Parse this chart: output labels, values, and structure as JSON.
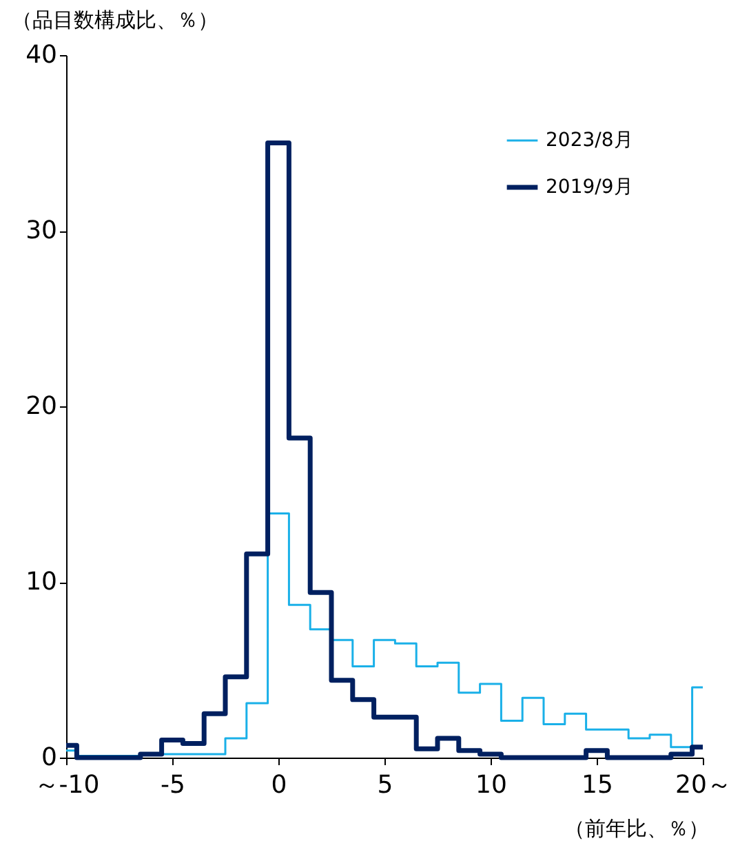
{
  "chart_data": {
    "type": "step",
    "ylabel": "（品目数構成比、％）",
    "xlabel": "（前年比、％）",
    "x": [
      -10,
      -9,
      -8,
      -7,
      -6,
      -5,
      -4,
      -3,
      -2,
      -1,
      0,
      1,
      2,
      3,
      4,
      5,
      6,
      7,
      8,
      9,
      10,
      11,
      12,
      13,
      14,
      15,
      16,
      17,
      18,
      19,
      20
    ],
    "series": [
      {
        "name": "2023/8月",
        "color": "#1ab0e8",
        "values": [
          0.4,
          0.1,
          0.1,
          0.1,
          0.2,
          0.2,
          0.2,
          0.2,
          1.1,
          3.1,
          13.9,
          8.7,
          7.3,
          6.7,
          5.2,
          6.7,
          6.5,
          5.2,
          5.4,
          3.7,
          4.2,
          2.1,
          3.4,
          1.9,
          2.5,
          1.6,
          1.6,
          1.1,
          1.3,
          0.6,
          4.0
        ]
      },
      {
        "name": "2019/9月",
        "color": "#002060",
        "values": [
          0.7,
          0,
          0,
          0,
          0.2,
          1.0,
          0.8,
          2.5,
          4.6,
          11.6,
          35.0,
          18.2,
          9.4,
          4.4,
          3.3,
          2.3,
          2.3,
          0.5,
          1.1,
          0.4,
          0.2,
          0,
          0,
          0,
          0,
          0.4,
          0,
          0,
          0,
          0.2,
          0.6
        ]
      }
    ],
    "xlim": [
      -10,
      20
    ],
    "xticks": [
      {
        "value": -10,
        "label": "～-10"
      },
      -5,
      0,
      5,
      10,
      15,
      {
        "value": 20,
        "label": "20～"
      }
    ],
    "ylim": [
      0,
      40
    ],
    "yticks": [
      0,
      10,
      20,
      30,
      40
    ],
    "grid": false,
    "legend": "top right"
  }
}
